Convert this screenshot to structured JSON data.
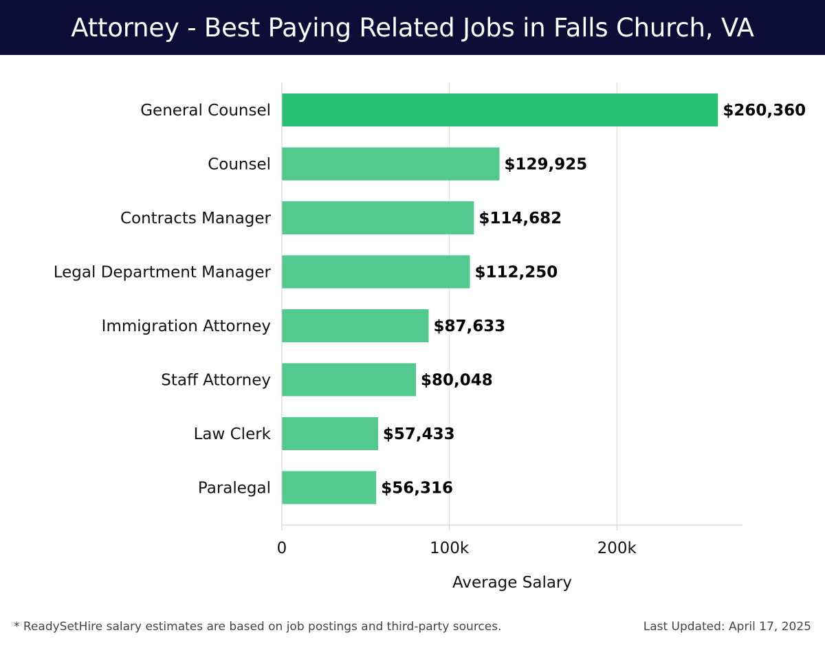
{
  "header": {
    "title": "Attorney - Best Paying Related Jobs in Falls Church, VA"
  },
  "footer": {
    "note": "* ReadySetHire salary estimates are based on job postings and third-party sources.",
    "updated": "Last Updated: April 17, 2025"
  },
  "chart_data": {
    "type": "bar",
    "orientation": "horizontal",
    "title": "Attorney - Best Paying Related Jobs in Falls Church, VA",
    "xlabel": "Average Salary",
    "ylabel": "",
    "xlim": [
      0,
      275000
    ],
    "x_ticks": [
      0,
      100000,
      200000
    ],
    "x_tick_labels": [
      "0",
      "100k",
      "200k"
    ],
    "grid": "vertical",
    "categories": [
      "General Counsel",
      "Counsel",
      "Contracts Manager",
      "Legal Department Manager",
      "Immigration Attorney",
      "Staff Attorney",
      "Law Clerk",
      "Paralegal"
    ],
    "values": [
      260360,
      129925,
      114682,
      112250,
      87633,
      80048,
      57433,
      56316
    ],
    "value_labels": [
      "$260,360",
      "$129,925",
      "$114,682",
      "$112,250",
      "$87,633",
      "$80,048",
      "$57,433",
      "$56,316"
    ],
    "colors": {
      "highlight": "#2abf76",
      "bar": "#52c98e"
    }
  }
}
